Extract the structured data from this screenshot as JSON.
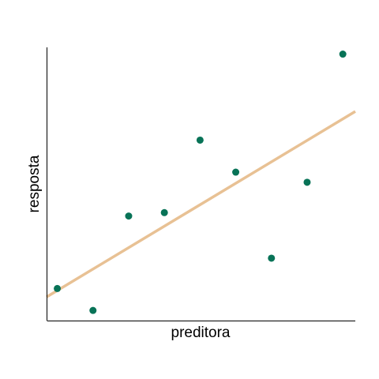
{
  "chart_data": {
    "type": "scatter",
    "title": "",
    "xlabel": "preditora",
    "ylabel": "resposta",
    "xlim": [
      0.7,
      9.35
    ],
    "ylim": [
      -0.3,
      7.8
    ],
    "x_ticks_shown": false,
    "y_ticks_shown": false,
    "grid": false,
    "legend": "none",
    "series": [
      {
        "values": [
          {
            "x": 1,
            "y": 0.65
          },
          {
            "x": 2,
            "y": 0.0
          },
          {
            "x": 3,
            "y": 2.8
          },
          {
            "x": 4,
            "y": 2.9
          },
          {
            "x": 5,
            "y": 5.05
          },
          {
            "x": 6,
            "y": 4.1
          },
          {
            "x": 7,
            "y": 1.55
          },
          {
            "x": 8,
            "y": 3.8
          },
          {
            "x": 9,
            "y": 7.6
          }
        ],
        "color": "#087357"
      }
    ],
    "fit_line": {
      "x": [
        0.7,
        9.35
      ],
      "y": [
        0.4,
        5.9
      ],
      "color": "#E8C194"
    }
  }
}
